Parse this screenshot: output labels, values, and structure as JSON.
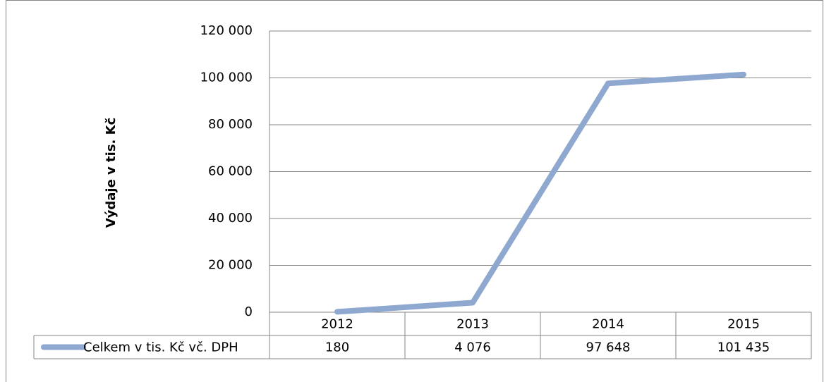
{
  "chart_data": {
    "type": "line",
    "y_label": "Výdaje v tis. Kč",
    "categories": [
      "2012",
      "2013",
      "2014",
      "2015"
    ],
    "series": [
      {
        "name": "Celkem v tis. Kč vč. DPH",
        "color": "#8fa8d0",
        "values": [
          180,
          4076,
          97648,
          101435
        ],
        "value_labels": [
          "180",
          "4 076",
          "97 648",
          "101 435"
        ]
      }
    ],
    "ylim": [
      0,
      120000
    ],
    "yticks": [
      0,
      {
        "value": 20000,
        "label": "20 000"
      },
      {
        "value": 40000,
        "label": "40 000"
      },
      {
        "value": 60000,
        "label": "60 000"
      },
      {
        "value": 80000,
        "label": "80 000"
      },
      {
        "value": 100000,
        "label": "100 000"
      },
      {
        "value": 120000,
        "label": "120 000"
      }
    ],
    "grid": true,
    "data_table": true
  }
}
